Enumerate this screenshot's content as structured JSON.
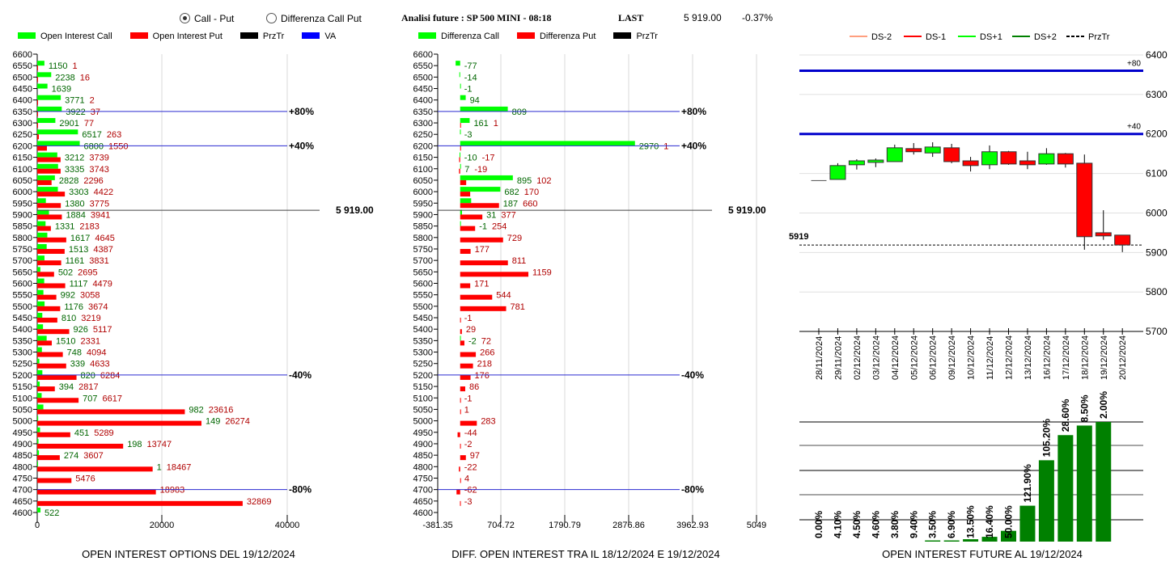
{
  "header": {
    "radio_options": [
      {
        "label": "Call - Put",
        "selected": true
      },
      {
        "label": "Differenza Call Put",
        "selected": false
      }
    ],
    "analysis_title": "Analisi future : SP 500 MINI - 08:18",
    "last_label": "LAST",
    "last_value": "5 919.00",
    "change": "-0.37%"
  },
  "colors": {
    "call": "#00ff00",
    "put": "#ff0000",
    "przTr": "#000000",
    "va": "#0000ff",
    "oi_future": "#008000"
  },
  "chart_data": [
    {
      "type": "bar",
      "orientation": "horizontal",
      "title": "OPEN INTEREST OPTIONS DEL 19/12/2024",
      "legend": [
        {
          "label": "Open Interest Call",
          "color": "#00ff00"
        },
        {
          "label": "Open Interest Put",
          "color": "#ff0000"
        },
        {
          "label": "PrzTr",
          "color": "#000000"
        },
        {
          "label": "VA",
          "color": "#0000ff"
        }
      ],
      "xlim": [
        0,
        40000
      ],
      "xticks": [
        "0",
        "20000",
        "40000"
      ],
      "strikes": [
        6600,
        6550,
        6500,
        6450,
        6400,
        6350,
        6300,
        6250,
        6200,
        6150,
        6100,
        6050,
        6000,
        5950,
        5900,
        5850,
        5800,
        5750,
        5700,
        5650,
        5600,
        5550,
        5500,
        5450,
        5400,
        5350,
        5300,
        5250,
        5200,
        5150,
        5100,
        5050,
        5000,
        4950,
        4900,
        4850,
        4800,
        4750,
        4700,
        4650,
        4600
      ],
      "series": [
        {
          "name": "Open Interest Call",
          "values": [
            null,
            1150,
            2238,
            1639,
            3771,
            3922,
            2901,
            6517,
            6800,
            3212,
            3335,
            2828,
            3303,
            1380,
            1884,
            1331,
            1617,
            1513,
            1161,
            502,
            1117,
            992,
            1176,
            810,
            926,
            1510,
            748,
            339,
            820,
            394,
            707,
            982,
            149,
            451,
            198,
            274,
            1,
            null,
            null,
            null,
            522
          ]
        },
        {
          "name": "Open Interest Put",
          "values": [
            null,
            1,
            16,
            null,
            2,
            37,
            77,
            263,
            1550,
            3739,
            3743,
            2296,
            4422,
            3775,
            3941,
            2183,
            4645,
            4387,
            3831,
            2695,
            4479,
            3058,
            3674,
            3219,
            5117,
            2331,
            4094,
            4633,
            6284,
            2817,
            6617,
            23616,
            26274,
            5289,
            13747,
            3607,
            18467,
            5476,
            18983,
            32869,
            null
          ]
        }
      ],
      "levels": [
        {
          "strike": 6350,
          "label": "+80%",
          "kind": "VA"
        },
        {
          "strike": 6200,
          "label": "+40%",
          "kind": "VA"
        },
        {
          "strike": 5200,
          "label": "-40%",
          "kind": "VA"
        },
        {
          "strike": 4700,
          "label": "-80%",
          "kind": "VA"
        },
        {
          "strike": 5919,
          "label": "5 919.00",
          "kind": "PrzTr"
        }
      ]
    },
    {
      "type": "bar",
      "orientation": "horizontal",
      "title": "DIFF. OPEN INTEREST TRA IL 18/12/2024 E 19/12/2024",
      "legend": [
        {
          "label": "Differenza Call",
          "color": "#00ff00"
        },
        {
          "label": "Differenza Put",
          "color": "#ff0000"
        },
        {
          "label": "PrzTr",
          "color": "#000000"
        }
      ],
      "xlim": [
        -381.35,
        5049
      ],
      "xticks": [
        "-381.35",
        "704.72",
        "1790.79",
        "2876.86",
        "3962.93",
        "5049"
      ],
      "series": [
        {
          "name": "Differenza Call",
          "values": [
            null,
            -77,
            -14,
            -1,
            94,
            809,
            161,
            -3,
            2970,
            -10,
            7,
            895,
            682,
            187,
            31,
            -1,
            null,
            null,
            null,
            null,
            null,
            null,
            null,
            null,
            null,
            -2,
            null,
            null,
            null,
            null,
            null,
            null,
            null,
            null,
            null,
            null,
            null,
            null,
            null,
            null,
            null
          ]
        },
        {
          "name": "Differenza Put",
          "values": [
            null,
            null,
            null,
            null,
            null,
            null,
            1,
            null,
            1,
            -17,
            -19,
            102,
            170,
            660,
            377,
            254,
            729,
            177,
            811,
            1159,
            171,
            544,
            781,
            -1,
            29,
            72,
            266,
            218,
            176,
            86,
            -1,
            1,
            283,
            -44,
            -2,
            97,
            -22,
            4,
            -62,
            -3,
            null
          ]
        }
      ],
      "levels": [
        {
          "strike": 6350,
          "label": "+80%"
        },
        {
          "strike": 6200,
          "label": "+40%"
        },
        {
          "strike": 5200,
          "label": "-40%"
        },
        {
          "strike": 4700,
          "label": "-80%"
        },
        {
          "strike": 5919,
          "label": "5 919.00"
        }
      ]
    },
    {
      "type": "candlestick",
      "legend": [
        {
          "label": "DS-2",
          "color": "#ff9f7f"
        },
        {
          "label": "DS-1",
          "color": "#ff0000"
        },
        {
          "label": "DS+1",
          "color": "#00ff00"
        },
        {
          "label": "DS+2",
          "color": "#008000"
        },
        {
          "label": "PrzTr",
          "color": "#000000",
          "dashed": true
        }
      ],
      "ylim": [
        5700,
        6400
      ],
      "yticks": [
        "6400",
        "6300",
        "6200",
        "6100",
        "6000",
        "5900",
        "5800",
        "5700"
      ],
      "dates": [
        "28/11/2024",
        "29/11/2024",
        "02/12/2024",
        "03/12/2024",
        "04/12/2024",
        "05/12/2024",
        "06/12/2024",
        "09/12/2024",
        "10/12/2024",
        "11/12/2024",
        "12/12/2024",
        "13/12/2024",
        "16/12/2024",
        "17/12/2024",
        "18/12/2024",
        "19/12/2024",
        "20/12/2024"
      ],
      "ohlc": [
        [
          6083,
          6083,
          6083,
          6083
        ],
        [
          6085,
          6126,
          6085,
          6120
        ],
        [
          6122,
          6136,
          6110,
          6132
        ],
        [
          6128,
          6138,
          6116,
          6134
        ],
        [
          6130,
          6173,
          6130,
          6165
        ],
        [
          6163,
          6177,
          6148,
          6155
        ],
        [
          6152,
          6179,
          6142,
          6167
        ],
        [
          6165,
          6175,
          6126,
          6130
        ],
        [
          6132,
          6142,
          6105,
          6120
        ],
        [
          6122,
          6171,
          6111,
          6155
        ],
        [
          6155,
          6157,
          6122,
          6124
        ],
        [
          6132,
          6155,
          6111,
          6122
        ],
        [
          6124,
          6164,
          6122,
          6150
        ],
        [
          6150,
          6152,
          6115,
          6124
        ],
        [
          6126,
          6148,
          5907,
          5940
        ],
        [
          5950,
          6007,
          5932,
          5942
        ],
        [
          5944,
          5944,
          5901,
          5919
        ]
      ],
      "levels": [
        {
          "value": 6360,
          "label": "+80"
        },
        {
          "value": 6200,
          "label": "+40"
        }
      ],
      "last_price": {
        "value": 5919,
        "label": "5919"
      }
    },
    {
      "type": "bar",
      "title": "OPEN INTEREST FUTURE AL 19/12/2024",
      "categories": [
        "28/11/2024",
        "29/11/2024",
        "02/12/2024",
        "03/12/2024",
        "04/12/2024",
        "05/12/2024",
        "06/12/2024",
        "09/12/2024",
        "10/12/2024",
        "11/12/2024",
        "12/12/2024",
        "13/12/2024",
        "16/12/2024",
        "17/12/2024",
        "18/12/2024",
        "19/12/2024"
      ],
      "labels": [
        "0.00%",
        "4.10%",
        "4.50%",
        "4.60%",
        "3.80%",
        "9.40%",
        "3.50%",
        "6.90%",
        "13.50%",
        "16.40%",
        "50.00%",
        "121.90%",
        "105.20%",
        "28.60%",
        "8.50%",
        "2.00%"
      ],
      "relative_height": [
        0,
        0,
        0,
        0,
        0,
        0,
        0.01,
        0.01,
        0.02,
        0.04,
        0.09,
        0.3,
        0.68,
        0.89,
        0.97,
        1.0
      ]
    }
  ]
}
